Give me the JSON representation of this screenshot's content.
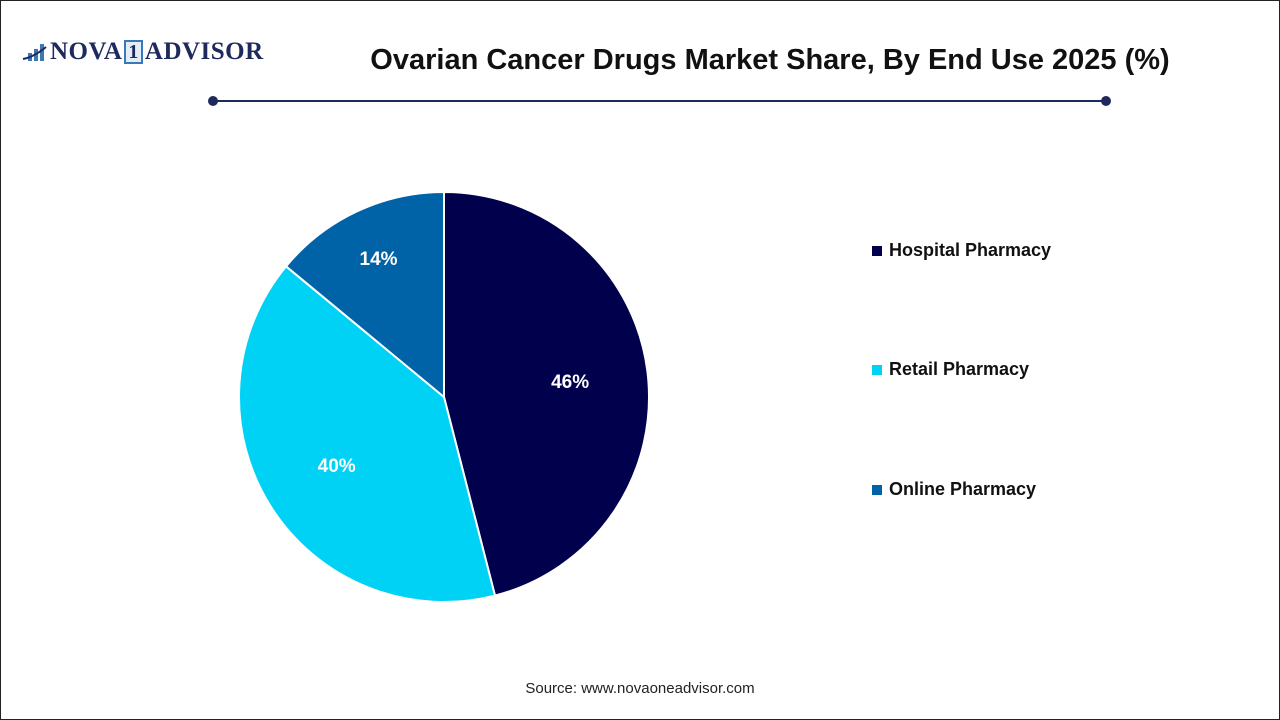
{
  "logo": {
    "text_left": "NOVA",
    "text_one": "1",
    "text_right": "ADVISOR"
  },
  "header": {
    "title": "Ovarian Cancer Drugs Market Share, By End Use 2025 (%)"
  },
  "chart_data": {
    "type": "pie",
    "title": "Ovarian Cancer Drugs Market Share, By End Use 2025 (%)",
    "categories": [
      "Hospital Pharmacy",
      "Retail Pharmacy",
      "Online Pharmacy"
    ],
    "values": [
      46,
      40,
      14
    ],
    "labels": [
      "46%",
      "40%",
      "14%"
    ],
    "colors": [
      "#00004d",
      "#00d2f5",
      "#0063a8"
    ],
    "start_angle": "top",
    "direction": "clockwise",
    "legend_position": "right"
  },
  "source": "Source: www.novaoneadvisor.com"
}
